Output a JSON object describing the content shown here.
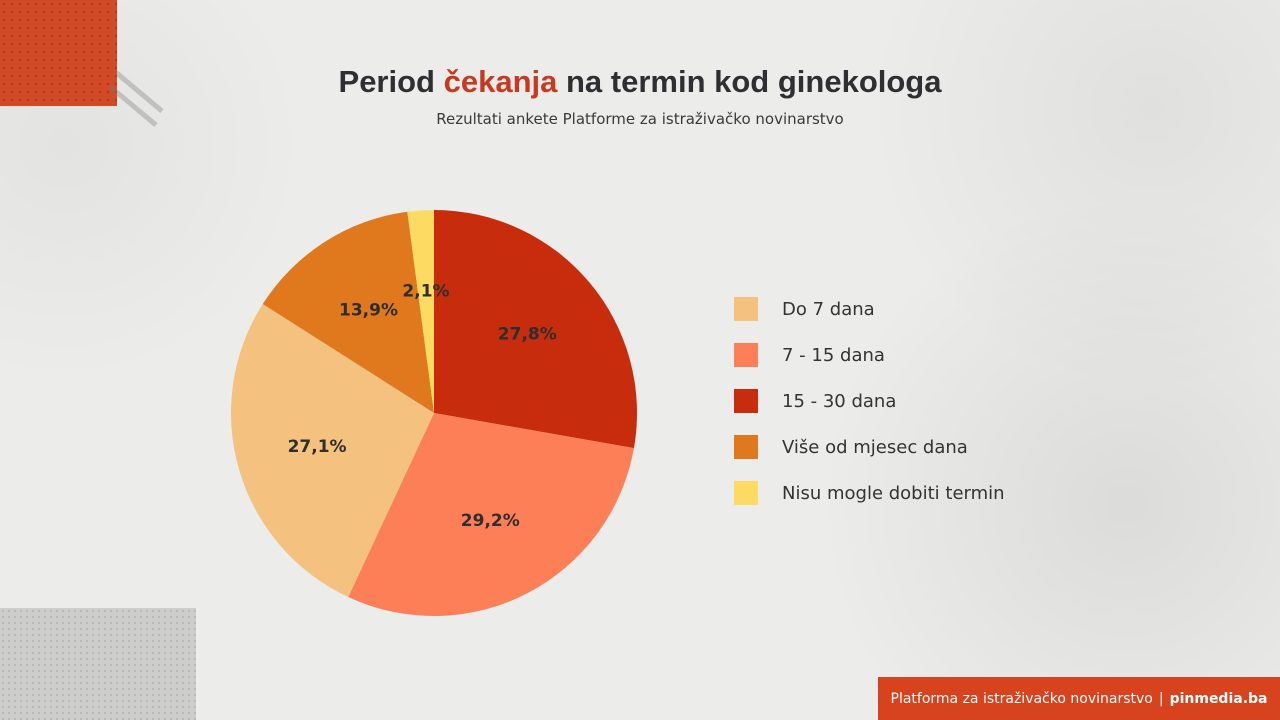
{
  "header": {
    "title_before": "Period ",
    "title_accent": "čekanja",
    "title_after": " na termin kod ginekologa",
    "subtitle": "Rezultati ankete Platforme za istraživačko novinarstvo"
  },
  "chart_data": {
    "type": "pie",
    "title": "Period čekanja na termin kod ginekologa",
    "subtitle": "Rezultati ankete Platforme za istraživačko novinarstvo",
    "legend_position": "right",
    "slices": [
      {
        "label": "15 - 30 dana",
        "value": 27.8,
        "display": "27,8%",
        "color": "#c72d0c"
      },
      {
        "label": "7 - 15 dana",
        "value": 29.2,
        "display": "29,2%",
        "color": "#fd7f57"
      },
      {
        "label": "Do 7 dana",
        "value": 27.1,
        "display": "27,1%",
        "color": "#f4c17e"
      },
      {
        "label": "Više od mjesec dana",
        "value": 13.9,
        "display": "13,9%",
        "color": "#e0781e"
      },
      {
        "label": "Nisu mogle dobiti termin",
        "value": 2.1,
        "display": "2,1%",
        "color": "#fddb63"
      }
    ],
    "legend": [
      {
        "label": "Do 7 dana",
        "color": "#f4c17e"
      },
      {
        "label": "7 - 15 dana",
        "color": "#fd7f57"
      },
      {
        "label": "15 - 30 dana",
        "color": "#c72d0c"
      },
      {
        "label": "Više od mjesec dana",
        "color": "#e0781e"
      },
      {
        "label": "Nisu mogle dobiti termin",
        "color": "#fddb63"
      }
    ]
  },
  "footer": {
    "org": "Platforma za istraživačko novinarstvo",
    "separator": "|",
    "site": "pinmedia.ba"
  }
}
